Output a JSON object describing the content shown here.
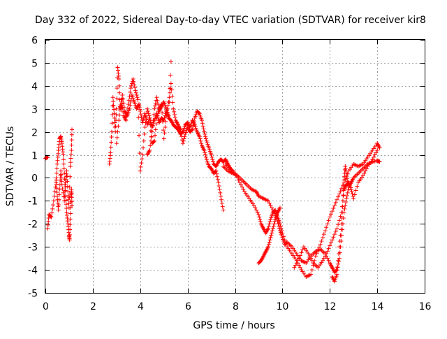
{
  "chart_data": {
    "type": "scatter",
    "title": "Day 332 of 2022, Sidereal Day-to-day VTEC variation (SDTVAR) for receiver kir8",
    "xlabel": "GPS time / hours",
    "ylabel": "SDTVAR / TECUs",
    "xlim": [
      0,
      16
    ],
    "ylim": [
      -5,
      6
    ],
    "xticks": [
      0,
      2,
      4,
      6,
      8,
      10,
      12,
      14,
      16
    ],
    "yticks": [
      -5,
      -4,
      -3,
      -2,
      -1,
      0,
      1,
      2,
      3,
      4,
      5,
      6
    ],
    "grid": true,
    "marker": "+",
    "color": "#ff0000",
    "series": [
      {
        "name": "SDTVAR",
        "segments": [
          [
            [
              0.0,
              0.85
            ],
            [
              0.1,
              0.9
            ]
          ],
          [
            [
              0.1,
              -2.2
            ],
            [
              0.15,
              -1.6
            ],
            [
              0.25,
              -1.7
            ],
            [
              0.35,
              -1.0
            ],
            [
              0.45,
              -0.2
            ],
            [
              0.5,
              0.6
            ],
            [
              0.55,
              1.2
            ],
            [
              0.6,
              1.7
            ],
            [
              0.65,
              1.8
            ],
            [
              0.7,
              1.5
            ],
            [
              0.75,
              1.0
            ],
            [
              0.8,
              0.2
            ],
            [
              0.85,
              -0.8
            ],
            [
              0.9,
              -1.5
            ],
            [
              0.95,
              -2.0
            ],
            [
              1.0,
              -2.5
            ],
            [
              1.02,
              -2.7
            ],
            [
              1.05,
              -1.8
            ],
            [
              1.08,
              -0.8
            ],
            [
              1.1,
              -0.5
            ],
            [
              1.12,
              -1.2
            ]
          ],
          [
            [
              0.45,
              -0.1
            ],
            [
              0.5,
              -0.8
            ],
            [
              0.55,
              -1.4
            ],
            [
              0.6,
              -0.5
            ],
            [
              0.65,
              0.3
            ],
            [
              0.7,
              -0.3
            ],
            [
              0.8,
              -1.0
            ],
            [
              0.85,
              -0.2
            ],
            [
              0.9,
              0.3
            ],
            [
              0.95,
              -0.6
            ],
            [
              1.0,
              -1.3
            ],
            [
              1.05,
              0.5
            ],
            [
              1.1,
              1.2
            ],
            [
              1.12,
              2.1
            ]
          ],
          [
            [
              2.7,
              0.6
            ],
            [
              2.75,
              1.1
            ],
            [
              2.8,
              2.0
            ],
            [
              2.85,
              3.5
            ],
            [
              2.9,
              2.8
            ],
            [
              2.95,
              2.0
            ],
            [
              3.0,
              3.0
            ],
            [
              3.05,
              4.8
            ],
            [
              3.1,
              4.3
            ],
            [
              3.15,
              3.1
            ],
            [
              3.2,
              3.0
            ],
            [
              3.25,
              3.6
            ],
            [
              3.35,
              2.9
            ],
            [
              3.45,
              2.7
            ],
            [
              3.55,
              3.0
            ],
            [
              3.65,
              3.6
            ],
            [
              3.75,
              3.3
            ],
            [
              3.85,
              3.0
            ],
            [
              3.95,
              3.2
            ],
            [
              4.0,
              2.9
            ],
            [
              4.1,
              2.4
            ],
            [
              4.2,
              2.8
            ],
            [
              4.3,
              2.3
            ],
            [
              4.4,
              2.6
            ],
            [
              4.5,
              2.2
            ],
            [
              4.6,
              2.5
            ],
            [
              4.7,
              2.8
            ],
            [
              4.8,
              2.4
            ],
            [
              4.9,
              2.6
            ],
            [
              5.0,
              2.5
            ],
            [
              5.1,
              2.9
            ],
            [
              5.2,
              2.6
            ],
            [
              5.3,
              2.5
            ],
            [
              5.4,
              2.3
            ],
            [
              5.5,
              2.2
            ],
            [
              5.6,
              2.1
            ],
            [
              5.7,
              1.9
            ],
            [
              5.8,
              2.0
            ],
            [
              5.9,
              2.3
            ],
            [
              6.0,
              2.4
            ],
            [
              6.1,
              2.2
            ],
            [
              6.2,
              2.5
            ],
            [
              6.3,
              2.3
            ],
            [
              6.4,
              2.0
            ],
            [
              6.5,
              1.8
            ],
            [
              6.6,
              1.4
            ],
            [
              6.7,
              1.2
            ],
            [
              6.8,
              0.8
            ],
            [
              6.9,
              0.5
            ],
            [
              7.0,
              0.4
            ],
            [
              7.1,
              0.2
            ],
            [
              7.2,
              0.3
            ],
            [
              7.3,
              -0.2
            ],
            [
              7.4,
              -0.8
            ],
            [
              7.5,
              -1.4
            ]
          ],
          [
            [
              3.0,
              1.5
            ],
            [
              3.1,
              2.5
            ],
            [
              3.2,
              3.4
            ],
            [
              3.3,
              2.7
            ],
            [
              3.4,
              2.5
            ],
            [
              3.5,
              3.2
            ],
            [
              3.6,
              3.9
            ],
            [
              3.7,
              4.3
            ],
            [
              3.8,
              3.8
            ],
            [
              3.9,
              3.4
            ],
            [
              4.0,
              0.3
            ],
            [
              4.1,
              1.0
            ],
            [
              4.2,
              2.2
            ],
            [
              4.3,
              3.0
            ],
            [
              4.4,
              2.6
            ],
            [
              4.5,
              1.5
            ],
            [
              4.6,
              1.6
            ],
            [
              4.7,
              2.6
            ],
            [
              4.8,
              3.0
            ],
            [
              4.9,
              3.2
            ],
            [
              5.0,
              1.7
            ],
            [
              5.1,
              2.7
            ],
            [
              5.2,
              3.3
            ],
            [
              5.3,
              4.1
            ],
            [
              5.4,
              3.0
            ],
            [
              5.5,
              2.5
            ],
            [
              5.6,
              2.3
            ],
            [
              5.7,
              2.1
            ],
            [
              5.8,
              1.5
            ],
            [
              5.9,
              1.9
            ],
            [
              6.0,
              2.2
            ],
            [
              6.1,
              2.0
            ],
            [
              6.2,
              2.1
            ],
            [
              6.3,
              2.6
            ],
            [
              6.4,
              2.9
            ],
            [
              6.5,
              2.8
            ],
            [
              6.6,
              2.5
            ],
            [
              6.7,
              2.0
            ],
            [
              6.8,
              1.6
            ],
            [
              6.9,
              1.3
            ],
            [
              7.0,
              1.0
            ],
            [
              7.1,
              0.6
            ],
            [
              7.2,
              0.5
            ],
            [
              7.3,
              0.7
            ],
            [
              7.4,
              0.8
            ],
            [
              7.5,
              0.7
            ],
            [
              7.6,
              0.8
            ],
            [
              7.7,
              0.6
            ],
            [
              7.8,
              0.4
            ],
            [
              7.9,
              0.3
            ]
          ],
          [
            [
              7.5,
              0.5
            ],
            [
              7.7,
              0.3
            ],
            [
              7.9,
              0.2
            ],
            [
              8.1,
              0.1
            ],
            [
              8.3,
              -0.1
            ],
            [
              8.5,
              -0.3
            ],
            [
              8.7,
              -0.5
            ],
            [
              8.9,
              -0.6
            ],
            [
              9.0,
              -0.8
            ],
            [
              9.2,
              -0.9
            ],
            [
              9.4,
              -1.0
            ],
            [
              9.6,
              -1.4
            ],
            [
              9.8,
              -1.9
            ],
            [
              9.9,
              -2.3
            ],
            [
              10.0,
              -2.6
            ],
            [
              10.1,
              -2.9
            ],
            [
              10.2,
              -2.8
            ],
            [
              10.4,
              -3.0
            ],
            [
              10.6,
              -3.3
            ],
            [
              10.8,
              -3.6
            ],
            [
              11.0,
              -3.7
            ],
            [
              11.2,
              -3.4
            ],
            [
              11.4,
              -3.2
            ],
            [
              11.6,
              -3.1
            ],
            [
              11.8,
              -3.3
            ],
            [
              12.0,
              -3.7
            ],
            [
              12.1,
              -3.9
            ],
            [
              12.2,
              -4.1
            ],
            [
              12.3,
              -4.0
            ],
            [
              12.4,
              -3.5
            ],
            [
              12.5,
              -2.5
            ],
            [
              12.6,
              -1.5
            ],
            [
              12.7,
              -0.9
            ],
            [
              12.8,
              -0.4
            ],
            [
              12.9,
              -0.2
            ],
            [
              13.0,
              0.0
            ],
            [
              13.2,
              0.2
            ],
            [
              13.4,
              0.4
            ],
            [
              13.6,
              0.6
            ],
            [
              13.8,
              0.7
            ],
            [
              14.0,
              0.75
            ],
            [
              14.1,
              0.7
            ]
          ],
          [
            [
              7.6,
              0.6
            ],
            [
              7.8,
              0.4
            ],
            [
              8.0,
              0.2
            ],
            [
              8.2,
              -0.2
            ],
            [
              8.4,
              -0.6
            ],
            [
              8.6,
              -0.9
            ],
            [
              8.8,
              -1.2
            ],
            [
              9.0,
              -1.6
            ],
            [
              9.1,
              -2.0
            ],
            [
              9.2,
              -2.2
            ],
            [
              9.3,
              -2.4
            ],
            [
              9.4,
              -2.2
            ],
            [
              9.5,
              -1.8
            ],
            [
              9.6,
              -1.5
            ],
            [
              9.7,
              -1.4
            ],
            [
              9.8,
              -1.7
            ],
            [
              9.9,
              -2.0
            ],
            [
              10.0,
              -2.4
            ],
            [
              10.2,
              -3.0
            ],
            [
              10.4,
              -3.3
            ],
            [
              10.6,
              -3.6
            ],
            [
              10.8,
              -4.0
            ],
            [
              11.0,
              -4.3
            ],
            [
              11.2,
              -4.2
            ],
            [
              11.4,
              -3.4
            ],
            [
              11.6,
              -2.9
            ],
            [
              11.8,
              -2.3
            ],
            [
              12.0,
              -1.7
            ],
            [
              12.2,
              -1.2
            ],
            [
              12.4,
              -0.7
            ],
            [
              12.6,
              -0.2
            ],
            [
              12.8,
              0.3
            ],
            [
              13.0,
              0.6
            ],
            [
              13.2,
              0.5
            ],
            [
              13.4,
              0.6
            ],
            [
              13.6,
              0.9
            ],
            [
              13.8,
              1.2
            ],
            [
              14.0,
              1.5
            ],
            [
              14.1,
              1.3
            ]
          ],
          [
            [
              9.0,
              -3.7
            ],
            [
              9.1,
              -3.6
            ],
            [
              9.2,
              -3.4
            ],
            [
              9.3,
              -3.2
            ],
            [
              9.4,
              -3.0
            ],
            [
              9.5,
              -2.6
            ],
            [
              9.6,
              -2.2
            ],
            [
              9.7,
              -1.8
            ],
            [
              9.8,
              -1.5
            ],
            [
              9.9,
              -1.3
            ]
          ],
          [
            [
              10.5,
              -3.9
            ],
            [
              10.7,
              -3.5
            ],
            [
              10.9,
              -3.0
            ],
            [
              11.1,
              -3.3
            ],
            [
              11.3,
              -3.7
            ],
            [
              11.5,
              -3.9
            ],
            [
              11.7,
              -3.6
            ],
            [
              11.9,
              -3.2
            ],
            [
              12.1,
              -2.7
            ],
            [
              12.3,
              -2.2
            ],
            [
              12.5,
              -1.5
            ],
            [
              12.6,
              -0.5
            ],
            [
              12.7,
              -0.3
            ],
            [
              12.8,
              -0.2
            ],
            [
              12.9,
              -0.5
            ],
            [
              13.0,
              -0.9
            ],
            [
              13.2,
              -0.2
            ],
            [
              13.4,
              0.1
            ],
            [
              13.6,
              0.5
            ],
            [
              13.8,
              0.8
            ],
            [
              14.0,
              1.2
            ]
          ],
          [
            [
              12.1,
              -4.3
            ],
            [
              12.2,
              -4.5
            ],
            [
              12.3,
              -4.2
            ],
            [
              12.4,
              -3.0
            ],
            [
              12.5,
              -2.0
            ],
            [
              12.55,
              -1.0
            ],
            [
              12.6,
              -0.1
            ],
            [
              12.65,
              0.5
            ],
            [
              12.7,
              0.1
            ],
            [
              12.8,
              -0.4
            ]
          ],
          [
            [
              4.3,
              1.0
            ],
            [
              4.4,
              1.2
            ],
            [
              4.5,
              2.0
            ],
            [
              4.6,
              3.0
            ],
            [
              4.7,
              3.5
            ],
            [
              4.8,
              2.9
            ],
            [
              4.9,
              3.1
            ],
            [
              5.0,
              3.3
            ],
            [
              5.1,
              3.0
            ],
            [
              5.2,
              2.7
            ],
            [
              5.3,
              5.05
            ]
          ]
        ]
      }
    ]
  }
}
